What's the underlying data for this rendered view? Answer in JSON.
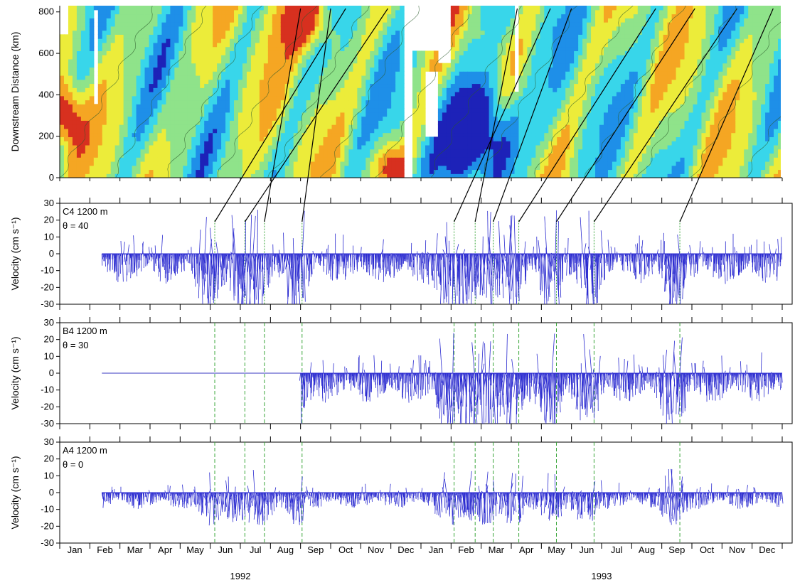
{
  "chart_data": [
    {
      "type": "heatmap",
      "panel": "top",
      "ylabel": "Downstream Distance (km)",
      "ylim": [
        0,
        830
      ],
      "yticks": [
        0,
        200,
        400,
        600,
        800
      ],
      "colormap": [
        "#1d22b8",
        "#1e8fe8",
        "#38d6ea",
        "#8fe38a",
        "#ecec3a",
        "#f5a623",
        "#d7301f"
      ],
      "propagation_lines": [
        {
          "from_month": 5.15,
          "to_month": 9.5
        },
        {
          "from_month": 6.15,
          "to_month": 10.9
        },
        {
          "from_month": 6.8,
          "to_month": 8.0
        },
        {
          "from_month": 8.05,
          "to_month": 9.0
        },
        {
          "from_month": 13.1,
          "to_month": 16.3
        },
        {
          "from_month": 13.8,
          "to_month": 15.2
        },
        {
          "from_month": 14.4,
          "to_month": 17.0
        },
        {
          "from_month": 15.25,
          "to_month": 19.8
        },
        {
          "from_month": 16.5,
          "to_month": 21.1
        },
        {
          "from_month": 17.75,
          "to_month": 22.5
        },
        {
          "from_month": 20.6,
          "to_month": 23.7
        }
      ]
    },
    {
      "type": "stick",
      "panel": "C4",
      "label": "C4 1200 m",
      "theta": "θ = 40",
      "ylabel": "Velocity (cm s⁻¹)",
      "ylim": [
        -30,
        30
      ],
      "yticks": [
        -30,
        -20,
        -10,
        0,
        10,
        20,
        30
      ],
      "record_start_month": 1.4,
      "record_end_month": 24.0,
      "event_months": [
        5.15,
        6.15,
        6.8,
        8.05,
        13.1,
        13.8,
        14.4,
        15.25,
        16.5,
        17.75,
        20.6
      ]
    },
    {
      "type": "stick",
      "panel": "B4",
      "label": "B4 1200 m",
      "theta": "θ = 30",
      "ylabel": "Velocity (cm s⁻¹)",
      "ylim": [
        -30,
        30
      ],
      "yticks": [
        -30,
        -20,
        -10,
        0,
        10,
        20,
        30
      ],
      "record_start_month": 8.0,
      "record_end_month": 24.0,
      "flat_from_month": 1.4
    },
    {
      "type": "stick",
      "panel": "A4",
      "label": "A4 1200 m",
      "theta": "θ = 0",
      "ylabel": "Velocity (cm s⁻¹)",
      "ylim": [
        -30,
        30
      ],
      "yticks": [
        -30,
        -20,
        -10,
        0,
        10,
        20,
        30
      ],
      "record_start_month": 1.4,
      "record_end_month": 24.0
    }
  ],
  "x_axis": {
    "months": [
      "Jan",
      "Feb",
      "Mar",
      "Apr",
      "May",
      "Jun",
      "Jul",
      "Aug",
      "Sep",
      "Oct",
      "Nov",
      "Dec",
      "Jan",
      "Feb",
      "Mar",
      "Apr",
      "May",
      "Jun",
      "Jul",
      "Aug",
      "Sep",
      "Oct",
      "Nov",
      "Dec"
    ],
    "years": [
      "1992",
      "1993"
    ]
  },
  "colors": {
    "stick": "#2a2ad0",
    "flat_line": "#9b9be0",
    "event_line": "#3aa63a",
    "contour": "#2b5a2b",
    "gap": "#ffffff"
  }
}
